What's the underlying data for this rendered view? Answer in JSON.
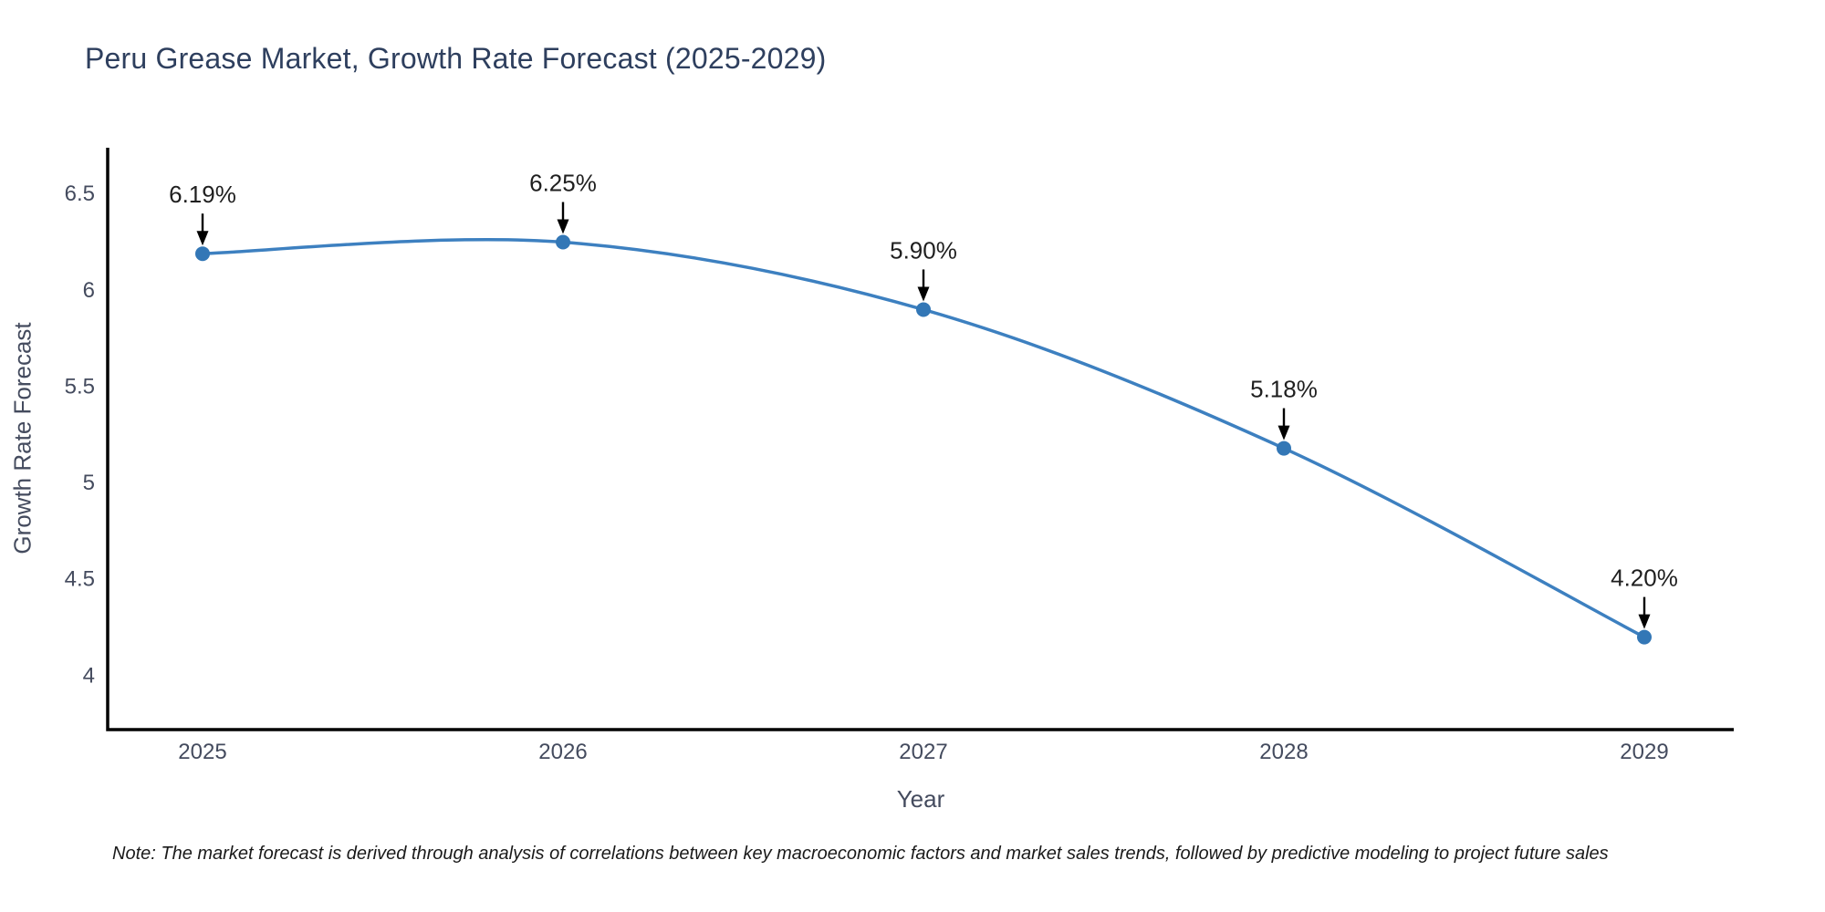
{
  "note": "Note: The market forecast is derived through analysis of correlations between key macroeconomic factors and market sales trends, followed by predictive modeling to project future sales",
  "chart_data": {
    "type": "line",
    "title": "Peru Grease Market, Growth Rate Forecast (2025-2029)",
    "xlabel": "Year",
    "ylabel": "Growth Rate Forecast",
    "categories": [
      "2025",
      "2026",
      "2027",
      "2028",
      "2029"
    ],
    "values": [
      6.19,
      6.25,
      5.9,
      5.18,
      4.2
    ],
    "point_labels": [
      "6.19%",
      "6.25%",
      "5.90%",
      "5.18%",
      "4.20%"
    ],
    "ylim": [
      3.72,
      6.74
    ],
    "yticks": [
      4,
      4.5,
      5,
      5.5,
      6,
      6.5
    ],
    "ytick_labels": [
      "4",
      "4.5",
      "5",
      "5.5",
      "6",
      "6.5"
    ],
    "line_shape": "spline",
    "grid": false,
    "legend": "none",
    "annotations": "value labels with down arrows above each point",
    "colors": {
      "line": "#3d80c0",
      "marker": "#3377b6",
      "axis": "#000000",
      "tick_label": "#444b5e",
      "title": "#2e3f5e",
      "annotation": "#1f1f1f"
    }
  }
}
